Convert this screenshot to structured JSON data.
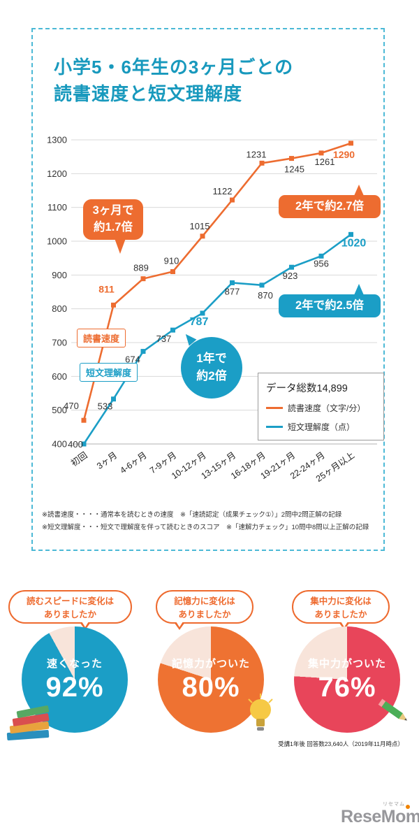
{
  "colors": {
    "teal_title": "#1899bd",
    "orange": "#ed6c30",
    "blue": "#1b9ec6",
    "pie_orange": "#ee7232",
    "pie_red": "#e8455a",
    "pie_rest": "#f8e4da"
  },
  "title": {
    "line1": "小学5・6年生の3ヶ月ごとの",
    "line2": "読書速度と短文理解度"
  },
  "chart_data": [
    {
      "type": "line",
      "title": "小学5・6年生の3ヶ月ごとの読書速度と短文理解度",
      "categories": [
        "初回",
        "3ヶ月",
        "4-6ヶ月",
        "7-9ヶ月",
        "10-12ヶ月",
        "13-15ヶ月",
        "16-18ヶ月",
        "19-21ヶ月",
        "22-24ヶ月",
        "25ヶ月以上"
      ],
      "series": [
        {
          "name": "読書速度（文字/分）",
          "short_label": "読書速度",
          "color": "#ed6c30",
          "values": [
            470,
            811,
            889,
            910,
            1015,
            1122,
            1231,
            1245,
            1261,
            1290
          ]
        },
        {
          "name": "短文理解度（点）",
          "short_label": "短文理解度",
          "color": "#1b9ec6",
          "values": [
            400,
            533,
            674,
            737,
            787,
            877,
            870,
            923,
            956,
            1020
          ]
        }
      ],
      "ylim": [
        400,
        1300
      ],
      "ytick_step": 100,
      "grid": true,
      "legend": {
        "position": "inside-bottom-right",
        "title": "データ総数14,899"
      },
      "annotations": [
        {
          "lines": [
            "3ヶ月で",
            "約1.7倍"
          ],
          "color": "#ed6c30"
        },
        {
          "lines": [
            "2年で約2.7倍"
          ],
          "color": "#ed6c30"
        },
        {
          "lines": [
            "1年で",
            "約2倍"
          ],
          "color": "#1b9ec6"
        },
        {
          "lines": [
            "2年で約2.5倍"
          ],
          "color": "#1b9ec6"
        }
      ],
      "footnotes": [
        "※読書速度・・・・通常本を読むときの速度　※「速読認定（成果チェック①）」2問中2問正解の記録",
        "※短文理解度・・・短文で理解度を伴って読むときのスコア　※「速解力チェック」10問中8問以上正解の記録"
      ]
    },
    {
      "type": "pie",
      "question_lines": [
        "読むスピードに変化は",
        "ありましたか"
      ],
      "label": "速くなった",
      "percent": 92,
      "percent_label": "92%",
      "values": [
        92,
        8
      ],
      "color": "#1b9ec6"
    },
    {
      "type": "pie",
      "question_lines": [
        "記憶力に変化は",
        "ありましたか"
      ],
      "label": "記憶力がついた",
      "percent": 80,
      "percent_label": "80%",
      "values": [
        80,
        20
      ],
      "color": "#ee7232"
    },
    {
      "type": "pie",
      "question_lines": [
        "集中力に変化は",
        "ありましたか"
      ],
      "label": "集中力がついた",
      "percent": 76,
      "percent_label": "76%",
      "values": [
        76,
        24
      ],
      "color": "#e8455a"
    }
  ],
  "survey_note": "受講1年後 回答数23,640人（2019年11月時点）",
  "logo": {
    "name": "ReseMom",
    "kana": "リセマム"
  }
}
